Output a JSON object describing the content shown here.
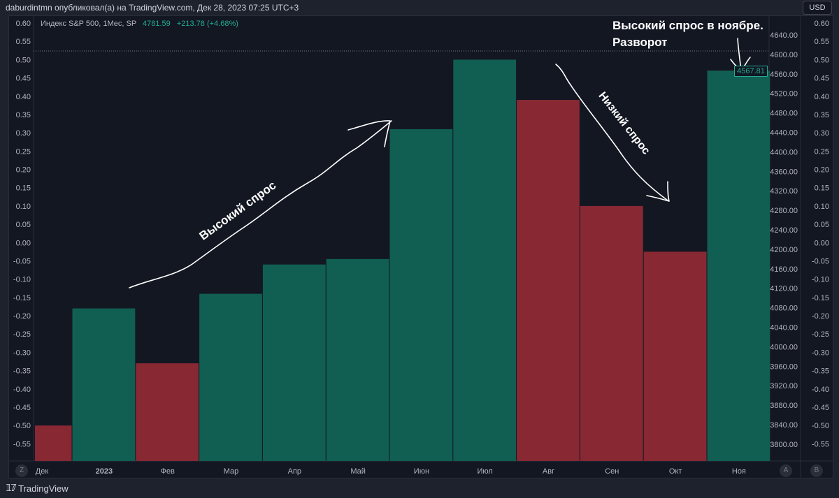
{
  "header": {
    "text": "daburdintmn опубликовал(а) на TradingView.com, Дек 28, 2023 07:25 UTC+3"
  },
  "legend": {
    "symbol": "Индекс S&P 500, 1Мес, SP",
    "price": "4781.59",
    "change": "+213.78 (+4.68%)"
  },
  "currency": "USD",
  "last_price_label": "4567.81",
  "footer": {
    "logo": "TV",
    "brand": "TradingView"
  },
  "corner_buttons": {
    "left": "Z",
    "a": "A",
    "b": "B"
  },
  "annotations": {
    "high_demand": "Высокий спрос",
    "low_demand": "Низкий спрос",
    "november_line1": "Высокий спрос в ноябре.",
    "november_line2": "Разворот"
  },
  "chart_data": {
    "type": "bar",
    "categories": [
      "Дек",
      "2023",
      "Фев",
      "Мар",
      "Апр",
      "Май",
      "Июн",
      "Июл",
      "Авг",
      "Сен",
      "Окт",
      "Ноя"
    ],
    "values": [
      -0.5,
      -0.18,
      -0.33,
      -0.14,
      -0.06,
      -0.045,
      0.31,
      0.5,
      0.39,
      0.1,
      -0.025,
      0.47
    ],
    "bar_colors": [
      "red",
      "green",
      "red",
      "green",
      "green",
      "green",
      "green",
      "green",
      "red",
      "red",
      "red",
      "green"
    ],
    "colors": {
      "green": "#115e53",
      "red": "#872833"
    },
    "ylim": [
      -0.55,
      0.6
    ],
    "y_ticks": [
      "0.60",
      "0.55",
      "0.50",
      "0.45",
      "0.40",
      "0.35",
      "0.30",
      "0.25",
      "0.20",
      "0.15",
      "0.10",
      "0.05",
      "0.00",
      "-0.05",
      "-0.10",
      "-0.15",
      "-0.20",
      "-0.25",
      "-0.30",
      "-0.35",
      "-0.40",
      "-0.45",
      "-0.50",
      "-0.55"
    ],
    "price_ticks": [
      "4640.00",
      "4600.00",
      "4560.00",
      "4520.00",
      "4480.00",
      "4440.00",
      "4400.00",
      "4360.00",
      "4320.00",
      "4280.00",
      "4240.00",
      "4200.00",
      "4160.00",
      "4120.00",
      "4080.00",
      "4040.00",
      "4000.00",
      "3960.00",
      "3920.00",
      "3880.00",
      "3840.00",
      "3800.00"
    ]
  }
}
